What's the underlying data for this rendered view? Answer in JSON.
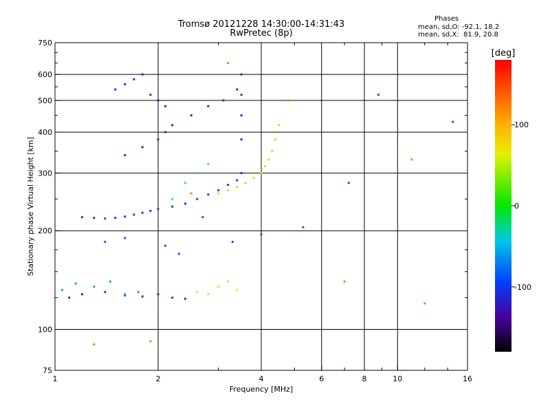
{
  "title_line1": "Tromsø 20121228 14:30:00-14:31:43",
  "title_line2": "RwPretec (8p)",
  "phases": {
    "heading": "Phases",
    "o_stats": "mean, sd,O: -92.1, 18.2",
    "x_stats": "mean, sd,X:  81.9, 20.8"
  },
  "colorbar": {
    "label": "[deg]",
    "ticks": [
      "100",
      "0",
      "-100"
    ],
    "tick_values": [
      100,
      0,
      -100
    ],
    "range": [
      -180,
      180
    ]
  },
  "chart_data": {
    "type": "scatter",
    "xlabel": "Frequency [MHz]",
    "ylabel": "Stationary phase Virtual Height [km]",
    "x_scale": "log",
    "y_scale": "log",
    "xlim": [
      1,
      16
    ],
    "ylim": [
      75,
      750
    ],
    "x_ticks": [
      "1",
      "2",
      "4",
      "6",
      "8",
      "10",
      "16"
    ],
    "x_tick_values": [
      1,
      2,
      4,
      6,
      8,
      10,
      16
    ],
    "y_ticks": [
      "75",
      "100",
      "200",
      "300",
      "400",
      "500",
      "600",
      "750"
    ],
    "y_tick_values": [
      75,
      100,
      200,
      300,
      400,
      500,
      600,
      750
    ],
    "grid": true,
    "color_encodes": "phase [deg]",
    "series": [
      {
        "color": "#2040e0",
        "x": [
          1.2,
          1.3,
          1.4,
          1.5,
          1.6,
          1.7,
          1.8,
          1.9,
          2.0,
          2.2,
          2.4,
          2.6,
          2.8,
          3.0,
          3.2,
          3.4
        ],
        "y": [
          220,
          219,
          218,
          219,
          221,
          224,
          227,
          230,
          233,
          237,
          242,
          250,
          258,
          266,
          276,
          285
        ]
      },
      {
        "color": "#c8e820",
        "x": [
          3.0,
          3.2,
          3.4,
          3.6,
          3.8,
          4.0,
          4.1,
          4.2,
          4.3,
          4.4,
          4.5
        ],
        "y": [
          260,
          266,
          272,
          280,
          290,
          300,
          315,
          330,
          350,
          380,
          420
        ]
      },
      {
        "color": "#3030c0",
        "x": [
          1.1,
          1.2,
          1.4,
          1.6,
          1.8,
          2.0,
          2.2,
          2.4
        ],
        "y": [
          125,
          128,
          130,
          127,
          126,
          128,
          125,
          124
        ]
      },
      {
        "color": "#20a8e0",
        "x": [
          1.05,
          1.15,
          1.3,
          1.45,
          1.6,
          1.75
        ],
        "y": [
          132,
          138,
          135,
          140,
          128,
          130
        ]
      },
      {
        "color": "#3a20c8",
        "x": [
          1.6,
          1.8,
          2.0,
          2.1,
          2.2,
          2.5,
          2.8,
          3.1,
          3.4,
          3.5,
          3.5,
          3.5,
          3.5,
          3.5
        ],
        "y": [
          340,
          360,
          380,
          400,
          420,
          450,
          480,
          500,
          540,
          300,
          380,
          450,
          520,
          600
        ]
      },
      {
        "color": "#1a30d8",
        "x": [
          1.5,
          1.6,
          1.7,
          1.8,
          1.9,
          2.0,
          2.1
        ],
        "y": [
          540,
          560,
          580,
          600,
          520,
          500,
          480
        ]
      },
      {
        "color": "#c0f030",
        "x": [
          2.6,
          2.8,
          3.0,
          3.2,
          3.4
        ],
        "y": [
          130,
          128,
          135,
          140,
          132
        ]
      },
      {
        "color": "#30e0a0",
        "x": [
          2.2,
          2.4,
          2.6,
          2.8
        ],
        "y": [
          250,
          280,
          300,
          320
        ]
      },
      {
        "color": "#ff8000",
        "x": [
          1.3,
          1.9,
          2.5,
          3.2,
          4.8,
          7.0,
          11.0,
          12.0
        ],
        "y": [
          90,
          92,
          260,
          650,
          500,
          140,
          330,
          120
        ]
      },
      {
        "color": "#2050e8",
        "x": [
          1.4,
          1.6,
          2.1,
          2.3,
          2.7,
          3.3,
          4.0,
          5.3,
          7.2,
          8.8,
          14.5
        ],
        "y": [
          185,
          190,
          180,
          170,
          220,
          185,
          195,
          205,
          280,
          520,
          430
        ]
      }
    ]
  }
}
